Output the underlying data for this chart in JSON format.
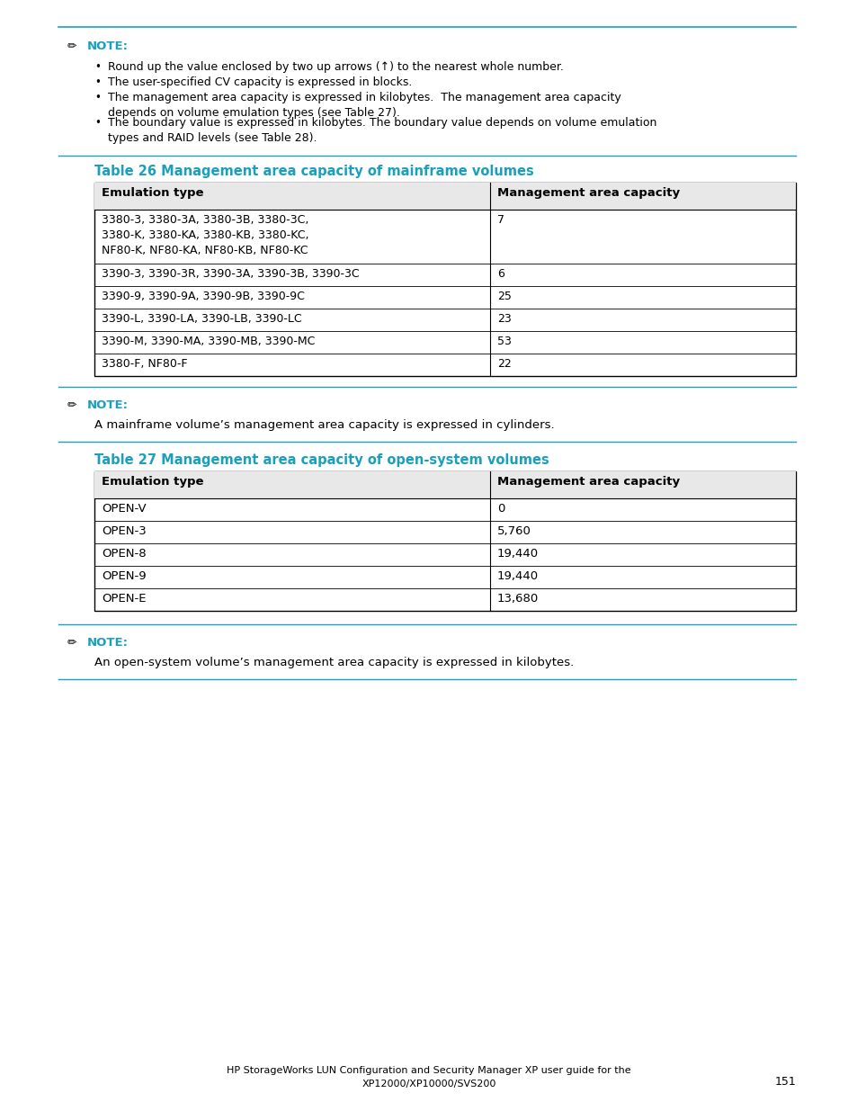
{
  "bg_color": "#ffffff",
  "cyan_color": "#1a9fbc",
  "black_color": "#000000",
  "note1_bullets": [
    "Round up the value enclosed by two up arrows (↑) to the nearest whole number.",
    "The user-specified CV capacity is expressed in blocks.",
    "The management area capacity is expressed in kilobytes.  The management area capacity\ndepends on volume emulation types (see Table 27).",
    "The boundary value is expressed in kilobytes. The boundary value depends on volume emulation\ntypes and RAID levels (see Table 28)."
  ],
  "table26_title": "Table 26 Management area capacity of mainframe volumes",
  "table26_headers": [
    "Emulation type",
    "Management area capacity"
  ],
  "table26_col1": [
    "3380-3, 3380-3A, 3380-3B, 3380-3C,\n3380-K, 3380-KA, 3380-KB, 3380-KC,\nNF80-K, NF80-KA, NF80-KB, NF80-KC",
    "3390-3, 3390-3R, 3390-3A, 3390-3B, 3390-3C",
    "3390-9, 3390-9A, 3390-9B, 3390-9C",
    "3390-L, 3390-LA, 3390-LB, 3390-LC",
    "3390-M, 3390-MA, 3390-MB, 3390-MC",
    "3380-F, NF80-F"
  ],
  "table26_col2": [
    "7",
    "6",
    "25",
    "23",
    "53",
    "22"
  ],
  "note2_text": "A mainframe volume’s management area capacity is expressed in cylinders.",
  "table27_title": "Table 27 Management area capacity of open-system volumes",
  "table27_headers": [
    "Emulation type",
    "Management area capacity"
  ],
  "table27_col1": [
    "OPEN-V",
    "OPEN-3",
    "OPEN-8",
    "OPEN-9",
    "OPEN-E"
  ],
  "table27_col2": [
    "0",
    "5,760",
    "19,440",
    "19,440",
    "13,680"
  ],
  "note3_text": "An open-system volume’s management area capacity is expressed in kilobytes.",
  "footer_line1": "HP StorageWorks LUN Configuration and Security Manager XP user guide for the",
  "footer_line2": "XP12000/XP10000/SVS200",
  "page_num": "151"
}
